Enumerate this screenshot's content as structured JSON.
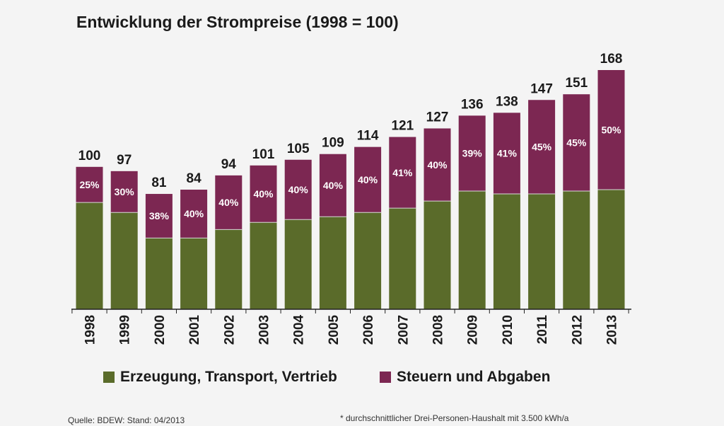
{
  "colors": {
    "erzeugung": "#5a6b2a",
    "steuern": "#7c2752",
    "axis": "#222222",
    "text": "#1a1a1a",
    "segment_label": "#ffffff"
  },
  "chart_data": {
    "type": "bar",
    "stacked": true,
    "title": "Entwicklung der Strompreise (1998 = 100)",
    "categories": [
      "1998",
      "1999",
      "2000",
      "2001",
      "2002",
      "2003",
      "2004",
      "2005",
      "2006",
      "2007",
      "2008",
      "2009",
      "2010",
      "2011",
      "2012",
      "2013"
    ],
    "totals": [
      100,
      97,
      81,
      84,
      94,
      101,
      105,
      109,
      114,
      121,
      127,
      136,
      138,
      147,
      151,
      168
    ],
    "tax_share_labels": [
      "25%",
      "30%",
      "38%",
      "40%",
      "40%",
      "40%",
      "40%",
      "40%",
      "40%",
      "41%",
      "40%",
      "39%",
      "41%",
      "45%",
      "45%",
      "50%"
    ],
    "series": [
      {
        "name": "Erzeugung, Transport, Vertrieb",
        "values": [
          75,
          68,
          50,
          50,
          56,
          61,
          63,
          65,
          68,
          71,
          76,
          83,
          81,
          81,
          83,
          84
        ]
      },
      {
        "name": "Steuern und Abgaben",
        "values": [
          25,
          29,
          31,
          34,
          38,
          40,
          42,
          44,
          46,
          50,
          51,
          53,
          57,
          66,
          68,
          84
        ]
      }
    ],
    "ylim": [
      0,
      168
    ],
    "grid": false,
    "legend_position": "bottom"
  },
  "legend": {
    "item1": "Erzeugung, Transport, Vertrieb",
    "item2": "Steuern und Abgaben"
  },
  "footer": {
    "source": "Quelle: BDEW: Stand: 04/2013",
    "footnote": "* durchschnittlicher Drei-Personen-Haushalt mit 3.500 kWh/a"
  }
}
